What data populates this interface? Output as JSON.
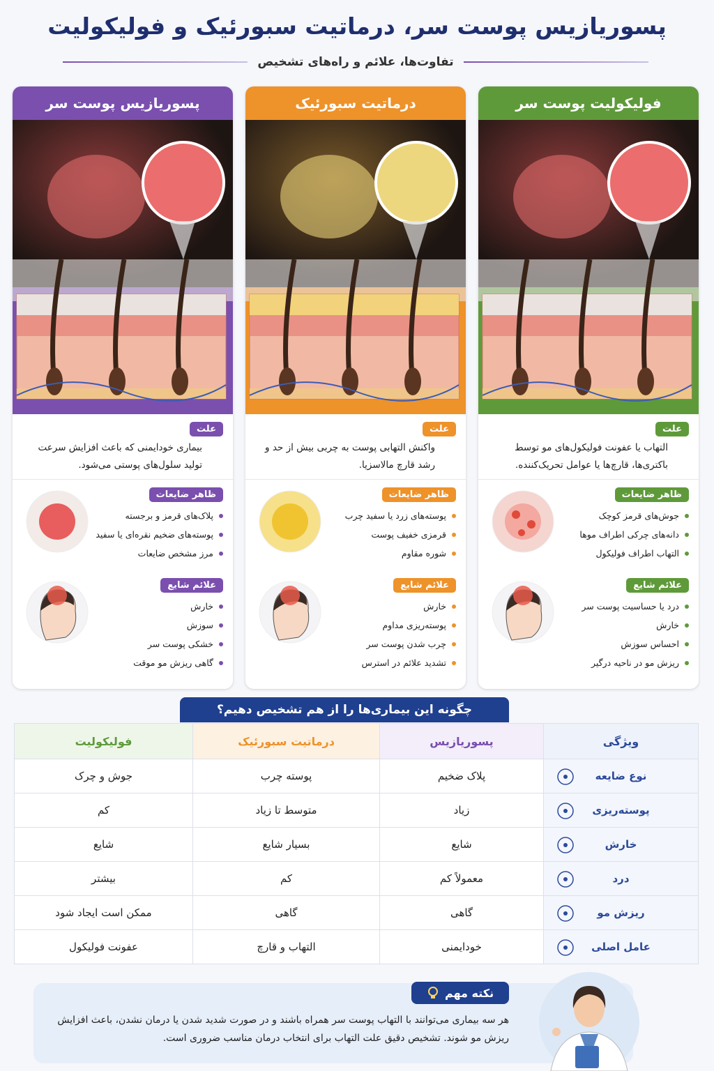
{
  "header": {
    "title": "پسوریازیس پوست سر، درماتیت سبورئیک و فولیکولیت",
    "subtitle": "تفاوت‌ها، علائم و راه‌های تشخیص"
  },
  "columns": [
    {
      "title": "فولیکولیت پوست سر",
      "color": "#5f9a3a",
      "cause_label": "علت",
      "cause": "التهاب یا عفونت فولیکول‌های مو توسط باکتری‌ها، قارچ‌ها یا عوامل تحریک‌کننده.",
      "lesions_label": "ظاهر ضایعات",
      "lesions": [
        "جوش‌های قرمز کوچک",
        "دانه‌های چرکی اطراف موها",
        "التهاب اطراف فولیکول"
      ],
      "symptoms_label": "علائم شایع",
      "symptoms": [
        "درد یا حساسیت پوست سر",
        "خارش",
        "احساس سوزش",
        "ریزش مو در ناحیه درگیر"
      ]
    },
    {
      "title": "درماتیت سبورئیک",
      "color": "#ee922a",
      "cause_label": "علت",
      "cause": "واکنش التهابی پوست به چربی بیش از حد و رشد قارچ مالاسزیا.",
      "lesions_label": "ظاهر ضایعات",
      "lesions": [
        "پوسته‌های زرد یا سفید چرب",
        "قرمزی خفیف پوست",
        "شوره مقاوم"
      ],
      "symptoms_label": "علائم شایع",
      "symptoms": [
        "خارش",
        "پوسته‌ریزی مداوم",
        "چرب شدن پوست سر",
        "تشدید علائم در استرس"
      ]
    },
    {
      "title": "پسوریازیس پوست سر",
      "color": "#7a4fae",
      "cause_label": "علت",
      "cause": "بیماری خودایمنی که باعث افزایش سرعت تولید سلول‌های پوستی می‌شود.",
      "lesions_label": "ظاهر ضایعات",
      "lesions": [
        "پلاک‌های قرمز و برجسته",
        "پوسته‌های ضخیم نقره‌ای یا سفید",
        "مرز مشخص ضایعات"
      ],
      "symptoms_label": "علائم شایع",
      "symptoms": [
        "خارش",
        "سوزش",
        "خشکی پوست سر",
        "گاهی ریزش مو موقت"
      ]
    }
  ],
  "table": {
    "title": "چگونه این بیماری‌ها را از هم تشخیص دهیم؟",
    "header": [
      "ویژگی",
      "پسوریازیس",
      "درماتیت سبورئیک",
      "فولیکولیت"
    ],
    "rows": [
      [
        "نوع ضایعه",
        "پلاک ضخیم",
        "پوسته چرب",
        "جوش و چرک"
      ],
      [
        "پوسته‌ریزی",
        "زیاد",
        "متوسط تا زیاد",
        "کم"
      ],
      [
        "خارش",
        "شایع",
        "بسیار شایع",
        "شایع"
      ],
      [
        "درد",
        "معمولاً کم",
        "کم",
        "بیشتر"
      ],
      [
        "ریزش مو",
        "گاهی",
        "گاهی",
        "ممکن است ایجاد شود"
      ],
      [
        "عامل اصلی",
        "خودایمنی",
        "التهاب و قارچ",
        "عفونت فولیکول"
      ]
    ]
  },
  "note": {
    "title": "نکته مهم",
    "text": "هر سه بیماری می‌توانند با التهاب پوست سر همراه باشند و در صورت شدید شدن یا درمان نشدن، باعث افزایش ریزش مو شوند. تشخیص دقیق علت التهاب برای انتخاب درمان مناسب ضروری است."
  }
}
